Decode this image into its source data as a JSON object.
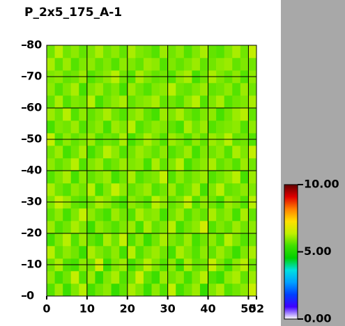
{
  "chart_data": {
    "type": "heatmap",
    "title": "P_2x5_175_A-1",
    "xlim": [
      0,
      52
    ],
    "ylim": [
      0,
      80
    ],
    "xticks": [
      0,
      10,
      20,
      30,
      40,
      50,
      52
    ],
    "yticks": [
      0,
      10,
      20,
      30,
      40,
      50,
      60,
      70,
      80
    ],
    "grid": true,
    "zlim": [
      0,
      10
    ],
    "zticks": [
      {
        "value": 0,
        "label": "0.00"
      },
      {
        "value": 5,
        "label": "5.00"
      },
      {
        "value": 10,
        "label": "10.00"
      }
    ],
    "colormap": [
      "#ffffff",
      "#4000ff",
      "#0040ff",
      "#00a0ff",
      "#00e0e0",
      "#00d000",
      "#40e000",
      "#c0f000",
      "#ffe000",
      "#ff8000",
      "#e00000",
      "#600000"
    ],
    "z": [
      [
        5.6,
        6.1,
        5.4,
        5.9,
        6.3,
        5.5,
        5.8,
        6.0,
        5.3,
        5.7,
        6.2,
        5.9,
        5.4,
        6.0,
        5.6,
        6.4,
        5.5,
        5.8,
        6.1,
        5.3,
        5.9,
        6.2,
        5.6,
        5.8,
        6.0,
        6.5
      ],
      [
        6.0,
        5.5,
        5.8,
        6.4,
        5.6,
        6.1,
        5.3,
        5.9,
        6.2,
        5.6,
        5.8,
        6.5,
        5.7,
        5.4,
        6.1,
        5.8,
        6.0,
        5.5,
        5.9,
        6.3,
        5.6,
        5.4,
        6.0,
        6.2,
        5.7,
        6.1
      ],
      [
        5.8,
        6.2,
        5.6,
        5.5,
        6.0,
        5.8,
        6.6,
        5.4,
        5.9,
        6.1,
        5.5,
        5.8,
        6.3,
        5.9,
        5.6,
        6.0,
        5.4,
        6.2,
        5.7,
        5.8,
        6.4,
        5.9,
        5.5,
        6.0,
        6.3,
        5.8
      ],
      [
        6.3,
        5.7,
        6.0,
        5.8,
        5.4,
        6.2,
        5.9,
        5.7,
        6.0,
        5.5,
        6.3,
        5.6,
        5.9,
        6.1,
        5.8,
        5.5,
        6.2,
        5.9,
        5.6,
        6.0,
        5.7,
        6.1,
        5.8,
        5.4,
        5.9,
        6.2
      ],
      [
        5.5,
        5.9,
        6.3,
        5.6,
        6.1,
        5.7,
        5.5,
        6.2,
        5.8,
        6.4,
        5.6,
        6.0,
        5.4,
        5.8,
        6.2,
        5.9,
        5.7,
        6.1,
        5.5,
        5.8,
        6.0,
        5.6,
        6.3,
        5.9,
        5.6,
        5.8
      ],
      [
        6.1,
        5.6,
        5.8,
        6.2,
        5.9,
        5.4,
        6.0,
        5.8,
        5.6,
        5.9,
        6.1,
        5.5,
        6.2,
        5.7,
        5.9,
        6.3,
        5.5,
        5.8,
        6.0,
        6.6,
        5.6,
        5.9,
        5.7,
        6.1,
        5.8,
        6.0
      ],
      [
        5.7,
        6.0,
        5.5,
        5.9,
        6.4,
        6.0,
        5.7,
        5.5,
        6.1,
        5.8,
        5.6,
        6.2,
        5.9,
        6.0,
        5.5,
        5.8,
        6.1,
        5.6,
        5.9,
        5.7,
        6.2,
        5.8,
        6.0,
        5.5,
        6.2,
        5.7
      ],
      [
        5.9,
        6.4,
        6.1,
        5.7,
        5.6,
        5.8,
        6.2,
        6.0,
        5.7,
        5.5,
        6.0,
        5.8,
        5.6,
        6.3,
        6.0,
        5.7,
        5.9,
        6.4,
        5.6,
        6.0,
        5.8,
        5.5,
        6.1,
        5.9,
        5.6,
        6.3
      ],
      [
        6.2,
        5.8,
        5.6,
        6.0,
        5.8,
        6.3,
        5.5,
        5.9,
        6.4,
        6.0,
        5.7,
        5.9,
        6.1,
        5.6,
        5.8,
        6.1,
        5.6,
        5.8,
        6.2,
        5.5,
        5.9,
        6.3,
        5.7,
        5.8,
        6.0,
        5.9
      ],
      [
        5.6,
        5.9,
        6.2,
        5.5,
        6.0,
        5.7,
        5.9,
        6.1,
        5.5,
        5.8,
        6.2,
        5.6,
        5.8,
        5.9,
        6.4,
        5.6,
        6.0,
        5.7,
        5.9,
        6.1,
        5.6,
        5.8,
        6.0,
        6.3,
        5.5,
        6.1
      ],
      [
        6.0,
        5.7,
        5.9,
        6.3,
        5.6,
        5.9,
        6.1,
        5.6,
        5.8,
        6.1,
        5.9,
        6.0,
        5.5,
        6.2,
        5.7,
        5.9,
        6.3,
        5.5,
        5.8,
        6.0,
        6.2,
        5.7,
        5.9,
        5.6,
        6.1,
        5.8
      ],
      [
        5.8,
        6.1,
        5.5,
        5.8,
        6.2,
        5.5,
        5.8,
        6.3,
        6.0,
        5.6,
        5.8,
        6.1,
        5.9,
        5.7,
        6.0,
        5.6,
        5.8,
        6.1,
        5.5,
        5.9,
        5.8,
        6.0,
        5.6,
        6.2,
        5.9,
        6.4
      ],
      [
        6.4,
        5.6,
        6.0,
        5.7,
        5.9,
        6.1,
        5.6,
        5.8,
        5.7,
        6.2,
        5.5,
        5.8,
        6.2,
        5.9,
        5.6,
        6.1,
        5.9,
        5.6,
        6.0,
        5.7,
        6.1,
        5.9,
        6.3,
        5.7,
        5.8,
        5.6
      ],
      [
        5.5,
        5.9,
        5.8,
        6.1,
        5.6,
        5.8,
        6.0,
        5.5,
        6.1,
        5.9,
        6.3,
        5.6,
        5.8,
        6.0,
        5.9,
        5.7,
        5.5,
        6.2,
        5.8,
        6.1,
        5.6,
        5.8,
        5.9,
        6.0,
        5.6,
        6.0
      ],
      [
        6.1,
        5.8,
        6.3,
        5.6,
        6.0,
        5.7,
        5.9,
        6.2,
        5.8,
        5.6,
        5.9,
        6.1,
        5.7,
        5.5,
        6.1,
        5.9,
        6.2,
        5.8,
        5.6,
        5.9,
        6.0,
        5.5,
        5.8,
        6.1,
        6.3,
        5.7
      ],
      [
        5.7,
        6.2,
        5.6,
        5.9,
        5.8,
        6.3,
        5.5,
        5.8,
        6.0,
        6.2,
        5.7,
        5.9,
        6.0,
        6.2,
        5.7,
        5.8,
        5.6,
        6.0,
        6.3,
        5.6,
        5.9,
        6.2,
        5.6,
        5.8,
        5.9,
        6.2
      ],
      [
        6.0,
        5.6,
        5.9,
        6.2,
        5.5,
        5.9,
        6.1,
        5.7,
        5.9,
        5.5,
        6.1,
        5.8,
        5.6,
        5.9,
        6.0,
        6.3,
        5.8,
        5.7,
        5.9,
        6.1,
        5.7,
        5.8,
        6.0,
        5.6,
        6.1,
        5.8
      ],
      [
        5.9,
        6.0,
        5.7,
        5.8,
        6.1,
        5.6,
        5.8,
        6.0,
        6.3,
        5.8,
        5.6,
        6.2,
        5.9,
        5.7,
        5.8,
        5.6,
        6.0,
        6.2,
        5.5,
        5.8,
        6.2,
        5.9,
        5.7,
        6.0,
        5.6,
        6.0
      ],
      [
        6.2,
        5.7,
        6.1,
        5.6,
        5.9,
        6.0,
        5.7,
        5.9,
        5.6,
        6.0,
        5.9,
        5.7,
        6.1,
        6.0,
        5.6,
        5.9,
        5.7,
        5.9,
        6.1,
        5.7,
        5.8,
        6.0,
        6.1,
        5.7,
        5.9,
        5.8
      ],
      [
        5.8,
        6.3,
        5.8,
        6.0,
        5.7,
        5.9,
        6.2,
        5.8,
        6.0,
        5.7,
        6.2,
        5.9,
        5.8,
        5.6,
        6.1,
        5.8,
        6.0,
        5.6,
        5.9,
        6.2,
        5.7,
        5.6,
        5.9,
        6.2,
        5.8,
        6.4
      ]
    ]
  }
}
